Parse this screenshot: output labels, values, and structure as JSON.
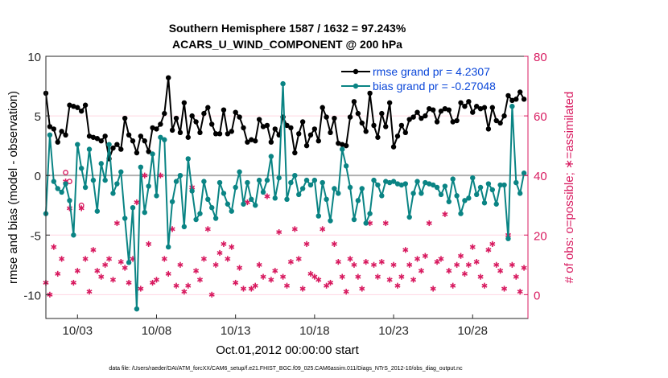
{
  "chart_data": {
    "type": "line",
    "title_line1": "Southern Hemisphere 1587 / 1632 = 97.243%",
    "title_line2": "ACARS_U_WIND_COMPONENT @ 200 hPa",
    "xlabel": "Oct.01,2012 00:00:00 start",
    "ylabel_left": "rmse and bias (model - observation)",
    "ylabel_right": "# of obs: o=possible; ∗=assimilated",
    "footer": "data file: /Users/raeder/DAI/ATM_forcXX/CAM6_setup/f.e21.FHIST_BGC.f09_025.CAM6assim.011/Diags_NTrS_2012-10/obs_diag_output.nc",
    "x_range": [
      1,
      31.5
    ],
    "x_ticks": [
      3,
      8,
      13,
      18,
      23,
      28
    ],
    "x_tick_labels": [
      "10/03",
      "10/08",
      "10/13",
      "10/18",
      "10/23",
      "10/28"
    ],
    "ylim_left": [
      -12,
      10
    ],
    "yticks_left": [
      10,
      5,
      0,
      -5,
      -10
    ],
    "ylim_right": [
      -8,
      80
    ],
    "yticks_right": [
      80,
      60,
      40,
      20,
      0
    ],
    "zero_line": 0,
    "colors": {
      "rmse": "#000000",
      "bias": "#0a8484",
      "obs": "#d81b60",
      "right_axis": "#d81b60",
      "zero": "#b0b0b0",
      "legend_text": "#0b47d9"
    },
    "legend": [
      {
        "name": "rmse grand pr = 4.2307",
        "series": "rmse"
      },
      {
        "name": "bias grand pr = -0.27048",
        "series": "bias"
      }
    ],
    "series": [
      {
        "name": "rmse",
        "x": [
          1.0,
          1.25,
          1.5,
          1.75,
          2.0,
          2.25,
          2.5,
          2.75,
          3.0,
          3.25,
          3.5,
          3.75,
          4.0,
          4.25,
          4.5,
          4.75,
          5.0,
          5.25,
          5.5,
          5.75,
          6.0,
          6.25,
          6.5,
          6.75,
          7.0,
          7.25,
          7.5,
          7.75,
          8.0,
          8.25,
          8.5,
          8.75,
          9.0,
          9.25,
          9.5,
          9.75,
          10.0,
          10.25,
          10.5,
          10.75,
          11.0,
          11.25,
          11.5,
          11.75,
          12.0,
          12.25,
          12.5,
          12.75,
          13.0,
          13.25,
          13.5,
          13.75,
          14.0,
          14.25,
          14.5,
          14.75,
          15.0,
          15.25,
          15.5,
          15.75,
          16.0,
          16.25,
          16.5,
          16.75,
          17.0,
          17.25,
          17.5,
          17.75,
          18.0,
          18.25,
          18.5,
          18.75,
          19.0,
          19.25,
          19.5,
          19.75,
          20.0,
          20.25,
          20.5,
          20.75,
          21.0,
          21.25,
          21.5,
          21.75,
          22.0,
          22.25,
          22.5,
          22.75,
          23.0,
          23.25,
          23.5,
          23.75,
          24.0,
          24.25,
          24.5,
          24.75,
          25.0,
          25.25,
          25.5,
          25.75,
          26.0,
          26.25,
          26.5,
          26.75,
          27.0,
          27.25,
          27.5,
          27.75,
          28.0,
          28.25,
          28.5,
          28.75,
          29.0,
          29.25,
          29.5,
          29.75,
          30.0,
          30.25,
          30.5,
          30.75,
          31.0,
          31.25
        ],
        "values": [
          6.9,
          4.1,
          3.9,
          2.8,
          3.7,
          3.4,
          5.9,
          5.8,
          5.7,
          5.4,
          5.9,
          3.3,
          3.2,
          3.1,
          2.9,
          3.3,
          1.4,
          2.3,
          2.6,
          2.2,
          4.8,
          3.4,
          2.9,
          1.9,
          3.3,
          2.9,
          2.0,
          4.0,
          3.9,
          4.3,
          5.2,
          8.2,
          3.8,
          4.8,
          3.6,
          6.1,
          3.2,
          5.0,
          4.5,
          3.6,
          5.2,
          5.7,
          4.3,
          3.5,
          3.5,
          5.5,
          3.5,
          3.7,
          5.3,
          4.9,
          4.0,
          2.8,
          3.0,
          2.9,
          4.7,
          4.1,
          4.2,
          2.8,
          3.9,
          3.4,
          4.9,
          4.2,
          4.0,
          1.9,
          3.5,
          4.5,
          2.5,
          3.4,
          3.9,
          2.9,
          5.7,
          4.9,
          3.6,
          4.8,
          2.7,
          2.6,
          2.5,
          4.9,
          6.2,
          5.2,
          4.4,
          3.7,
          6.9,
          4.2,
          3.2,
          5.2,
          4.1,
          6.1,
          2.4,
          3.3,
          4.2,
          3.6,
          4.7,
          4.9,
          5.3,
          4.8,
          5.0,
          5.6,
          5.5,
          4.5,
          5.4,
          5.6,
          5.5,
          4.5,
          4.6,
          6.1,
          5.8,
          6.2,
          5.3,
          5.8,
          5.6,
          5.7,
          3.9,
          5.7,
          4.6,
          4.4,
          5.0,
          6.7,
          6.3,
          6.4,
          7.0,
          6.4
        ]
      },
      {
        "name": "bias",
        "x": [
          1.0,
          1.25,
          1.5,
          1.75,
          2.0,
          2.25,
          2.5,
          2.75,
          3.0,
          3.25,
          3.5,
          3.75,
          4.0,
          4.25,
          4.5,
          4.75,
          5.0,
          5.25,
          5.5,
          5.75,
          6.0,
          6.25,
          6.5,
          6.75,
          7.0,
          7.25,
          7.5,
          7.75,
          8.0,
          8.25,
          8.5,
          8.75,
          9.0,
          9.25,
          9.5,
          9.75,
          10.0,
          10.25,
          10.5,
          10.75,
          11.0,
          11.25,
          11.5,
          11.75,
          12.0,
          12.25,
          12.5,
          12.75,
          13.0,
          13.25,
          13.5,
          13.75,
          14.0,
          14.25,
          14.5,
          14.75,
          15.0,
          15.25,
          15.5,
          15.75,
          16.0,
          16.25,
          16.5,
          16.75,
          17.0,
          17.25,
          17.5,
          17.75,
          18.0,
          18.25,
          18.5,
          18.75,
          19.0,
          19.25,
          19.5,
          19.75,
          20.0,
          20.25,
          20.5,
          20.75,
          21.0,
          21.25,
          21.5,
          21.75,
          22.0,
          22.25,
          22.5,
          22.75,
          23.0,
          23.25,
          23.5,
          23.75,
          24.0,
          24.25,
          24.5,
          24.75,
          25.0,
          25.25,
          25.5,
          25.75,
          26.0,
          26.25,
          26.5,
          26.75,
          27.0,
          27.25,
          27.5,
          27.75,
          28.0,
          28.25,
          28.5,
          28.75,
          29.0,
          29.25,
          29.5,
          29.75,
          30.0,
          30.25,
          30.5,
          30.75,
          31.0,
          31.25
        ],
        "values": [
          -3.2,
          3.4,
          -0.5,
          -1.1,
          -1.4,
          -0.7,
          -2.1,
          -5.0,
          2.6,
          0.6,
          -1.0,
          2.2,
          -0.4,
          -3.0,
          1.0,
          -0.4,
          2.6,
          -1.5,
          -0.7,
          0.3,
          -3.6,
          -7.3,
          -2.7,
          -11.2,
          0.7,
          -3.1,
          -0.9,
          1.8,
          -1.7,
          3.2,
          3.0,
          -6.0,
          -2.2,
          -0.5,
          0.0,
          -4.3,
          1.4,
          -1.3,
          -3.7,
          -3.2,
          -0.5,
          -2.0,
          -2.7,
          -3.6,
          -0.6,
          -1.5,
          -2.4,
          -3.0,
          -1.0,
          0.3,
          -2.4,
          -0.6,
          -2.0,
          -2.5,
          -0.4,
          -1.4,
          -0.4,
          1.6,
          -1.9,
          -0.2,
          7.7,
          -2.0,
          -0.6,
          0.0,
          -1.6,
          -1.1,
          -0.4,
          -0.8,
          -0.4,
          -3.4,
          -0.6,
          -2.0,
          -3.8,
          -1.1,
          -1.5,
          2.2,
          0.8,
          -1.0,
          -3.7,
          -2.1,
          -1.1,
          -4.0,
          -3.2,
          -0.4,
          -0.8,
          -1.7,
          -0.5,
          -0.6,
          -0.5,
          -0.7,
          -0.8,
          -0.7,
          -3.5,
          -1.5,
          -0.5,
          -1.5,
          -0.6,
          -0.7,
          -0.8,
          -1.0,
          -1.6,
          -0.9,
          -2.2,
          -0.3,
          -1.7,
          -3.2,
          -2.1,
          -1.9,
          -0.2,
          -1.6,
          -1.0,
          -2.3,
          -0.7,
          -1.2,
          -2.4,
          -0.8,
          -0.8,
          -5.3,
          5.8,
          -0.6,
          -1.5,
          0.2
        ]
      },
      {
        "name": "obs_possible",
        "x": [
          1.0,
          1.25,
          1.5,
          1.75,
          2.0,
          2.25,
          2.5,
          2.75,
          3.0,
          3.25,
          3.5,
          3.75,
          4.0,
          4.25,
          4.5,
          4.75,
          5.0,
          5.25,
          5.5,
          5.75,
          6.0,
          6.25,
          6.5,
          6.75,
          7.0,
          7.25,
          7.5,
          7.75,
          8.0,
          8.25,
          8.5,
          8.75,
          9.0,
          9.25,
          9.5,
          9.75,
          10.0,
          10.25,
          10.5,
          10.75,
          11.0,
          11.25,
          11.5,
          11.75,
          12.0,
          12.25,
          12.5,
          12.75,
          13.0,
          13.25,
          13.5,
          13.75,
          14.0,
          14.25,
          14.5,
          14.75,
          15.0,
          15.25,
          15.5,
          15.75,
          16.0,
          16.25,
          16.5,
          16.75,
          17.0,
          17.25,
          17.5,
          17.75,
          18.0,
          18.25,
          18.5,
          18.75,
          19.0,
          19.25,
          19.5,
          19.75,
          20.0,
          20.25,
          20.5,
          20.75,
          21.0,
          21.25,
          21.5,
          21.75,
          22.0,
          22.25,
          22.5,
          22.75,
          23.0,
          23.25,
          23.5,
          23.75,
          24.0,
          24.25,
          24.5,
          24.75,
          25.0,
          25.25,
          25.5,
          25.75,
          26.0,
          26.25,
          26.5,
          26.75,
          27.0,
          27.25,
          27.5,
          27.75,
          28.0,
          28.25,
          28.5,
          28.75,
          29.0,
          29.25,
          29.5,
          29.75,
          30.0,
          30.25,
          30.5,
          30.75,
          31.0,
          31.25
        ],
        "values": [
          4,
          0,
          16,
          7,
          12,
          41,
          38,
          4,
          8,
          30,
          12,
          1,
          15,
          8,
          6,
          10,
          12,
          5,
          24,
          11,
          9,
          4,
          12,
          31,
          2,
          40,
          17,
          4,
          5,
          40,
          12,
          7,
          22,
          3,
          10,
          1,
          3,
          36,
          8,
          5,
          12,
          22,
          0,
          10,
          14,
          17,
          12,
          16,
          4,
          9,
          2,
          31,
          2,
          3,
          10,
          6,
          33,
          5,
          8,
          21,
          6,
          3,
          11,
          22,
          12,
          2,
          17,
          7,
          6,
          5,
          22,
          3,
          4,
          17,
          11,
          6,
          1,
          12,
          10,
          6,
          2,
          11,
          24,
          10,
          6,
          11,
          24,
          5,
          10,
          3,
          6,
          15,
          10,
          5,
          12,
          8,
          13,
          24,
          2,
          11,
          12,
          27,
          8,
          3,
          10,
          13,
          7,
          10,
          16,
          11,
          6,
          3,
          15,
          17,
          10,
          8,
          2,
          20,
          10,
          6,
          1,
          9
        ]
      },
      {
        "name": "obs_assimilated",
        "x": [
          1.0,
          1.25,
          1.5,
          1.75,
          2.0,
          2.25,
          2.5,
          2.75,
          3.0,
          3.25,
          3.5,
          3.75,
          4.0,
          4.25,
          4.5,
          4.75,
          5.0,
          5.25,
          5.5,
          5.75,
          6.0,
          6.25,
          6.5,
          6.75,
          7.0,
          7.25,
          7.5,
          7.75,
          8.0,
          8.25,
          8.5,
          8.75,
          9.0,
          9.25,
          9.5,
          9.75,
          10.0,
          10.25,
          10.5,
          10.75,
          11.0,
          11.25,
          11.5,
          11.75,
          12.0,
          12.25,
          12.5,
          12.75,
          13.0,
          13.25,
          13.5,
          13.75,
          14.0,
          14.25,
          14.5,
          14.75,
          15.0,
          15.25,
          15.5,
          15.75,
          16.0,
          16.25,
          16.5,
          16.75,
          17.0,
          17.25,
          17.5,
          17.75,
          18.0,
          18.25,
          18.5,
          18.75,
          19.0,
          19.25,
          19.5,
          19.75,
          20.0,
          20.25,
          20.5,
          20.75,
          21.0,
          21.25,
          21.5,
          21.75,
          22.0,
          22.25,
          22.5,
          22.75,
          23.0,
          23.25,
          23.5,
          23.75,
          24.0,
          24.25,
          24.5,
          24.75,
          25.0,
          25.25,
          25.5,
          25.75,
          26.0,
          26.25,
          26.5,
          26.75,
          27.0,
          27.25,
          27.5,
          27.75,
          28.0,
          28.25,
          28.5,
          28.75,
          29.0,
          29.25,
          29.5,
          29.75,
          30.0,
          30.25,
          30.5,
          30.75,
          31.0,
          31.25
        ],
        "values": [
          4,
          0,
          16,
          7,
          12,
          38,
          29,
          4,
          8,
          29,
          12,
          1,
          15,
          8,
          6,
          10,
          12,
          5,
          24,
          11,
          9,
          4,
          12,
          31,
          2,
          40,
          17,
          4,
          5,
          40,
          12,
          7,
          22,
          3,
          10,
          1,
          3,
          36,
          8,
          5,
          12,
          22,
          0,
          10,
          14,
          17,
          12,
          16,
          4,
          9,
          2,
          31,
          2,
          3,
          10,
          6,
          33,
          5,
          8,
          21,
          6,
          3,
          11,
          22,
          12,
          2,
          17,
          7,
          6,
          5,
          22,
          3,
          4,
          17,
          11,
          6,
          1,
          12,
          10,
          6,
          2,
          11,
          24,
          10,
          6,
          11,
          24,
          5,
          10,
          3,
          6,
          15,
          10,
          5,
          12,
          8,
          13,
          24,
          2,
          11,
          12,
          27,
          8,
          3,
          10,
          13,
          7,
          10,
          16,
          11,
          6,
          3,
          15,
          17,
          10,
          8,
          2,
          20,
          10,
          6,
          1,
          9
        ]
      }
    ]
  }
}
